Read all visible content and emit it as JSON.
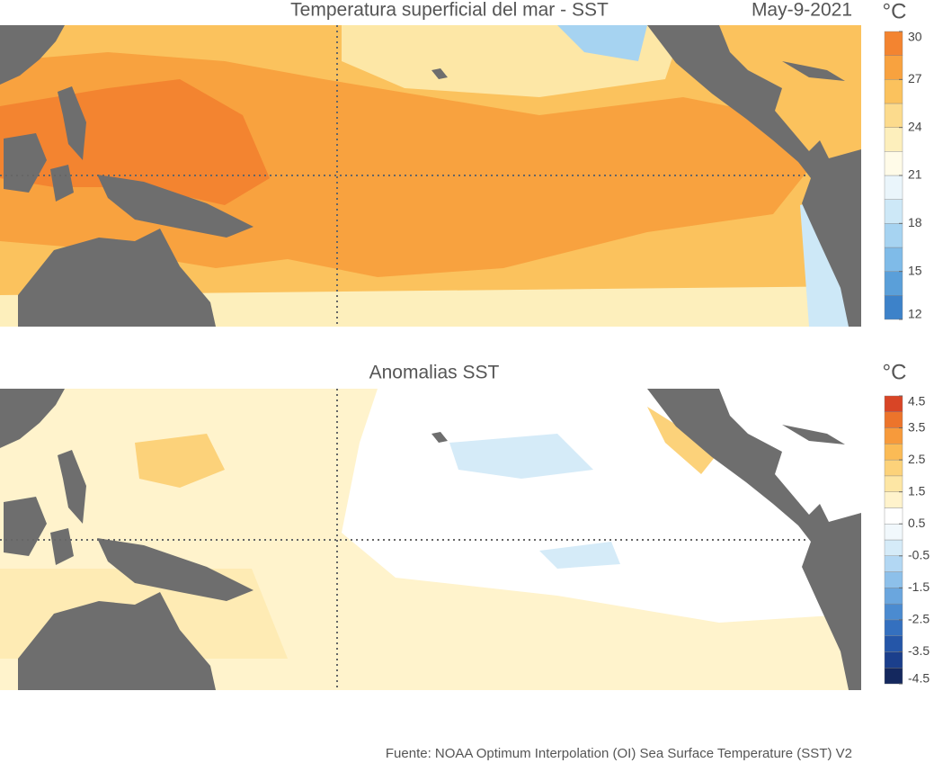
{
  "panels": [
    {
      "title": "Temperatura superficial del mar - SST",
      "date": "May-9-2021",
      "unit": "°C",
      "colorbar": {
        "range": [
          12,
          30
        ],
        "ticks": [
          30,
          27,
          24,
          21,
          18,
          15,
          12
        ],
        "colors": [
          "#3d82c9",
          "#5a9fd9",
          "#7fbbe8",
          "#a6d3f1",
          "#cde8f7",
          "#eaf5fb",
          "#fffbe8",
          "#fdefbc",
          "#fcdb8d",
          "#fbc25d",
          "#f8a23f",
          "#f38430"
        ]
      }
    },
    {
      "title": "Anomalias SST",
      "unit": "°C",
      "colorbar": {
        "range": [
          -4.5,
          4.5
        ],
        "ticks": [
          4.5,
          3.5,
          2.5,
          1.5,
          0.5,
          -0.5,
          -1.5,
          -2.5,
          -3.5,
          -4.5
        ],
        "colors": [
          "#14285e",
          "#1b3f8c",
          "#2556a8",
          "#3470bf",
          "#4b8bd0",
          "#6aa6de",
          "#8dc0ea",
          "#b2d7f3",
          "#d5ebf8",
          "#f1f8fc",
          "#ffffff",
          "#fff3cc",
          "#fde6a4",
          "#fcd27a",
          "#fbbb55",
          "#f79a3b",
          "#ec742b",
          "#d84526"
        ]
      }
    }
  ],
  "source": "Fuente: NOAA Optimum Interpolation (OI) Sea Surface Temperature (SST) V2"
}
